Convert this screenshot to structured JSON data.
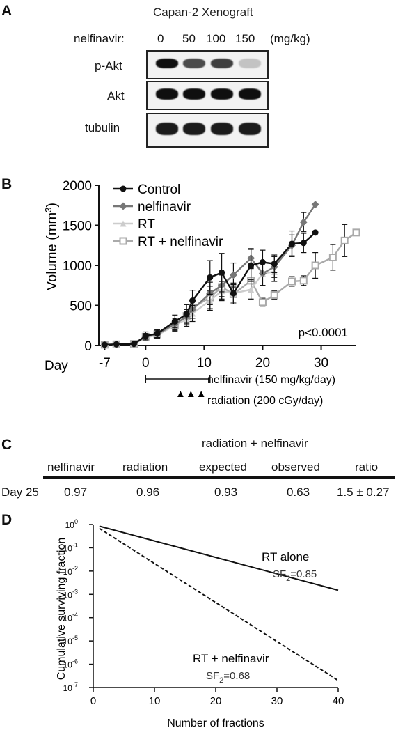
{
  "panel_a": {
    "letter": "A",
    "title": "Capan-2 Xenograft",
    "dose_label": "nelfinavir:",
    "doses": [
      "0",
      "50",
      "100",
      "150"
    ],
    "dose_unit": "(mg/kg)",
    "rows": [
      {
        "label": "p-Akt",
        "intensity": [
          1.0,
          0.75,
          0.8,
          0.25
        ]
      },
      {
        "label": "Akt",
        "intensity": [
          1.0,
          1.0,
          1.0,
          1.0
        ]
      },
      {
        "label": "tubulin",
        "intensity": [
          0.95,
          0.95,
          0.95,
          0.95
        ]
      }
    ]
  },
  "panel_b": {
    "letter": "B",
    "day_label": "Day",
    "pvalue": "p<0.0001",
    "nelfinavir_bar_label": "nelfinavir (150 mg/kg/day)",
    "radiation_label": "radiation (200 cGy/day)",
    "radiation_marker": "▲▲▲"
  },
  "panel_c": {
    "letter": "C",
    "group_header": "radiation + nelfinavir",
    "headers": [
      "nelfinavir",
      "radiation",
      "expected",
      "observed",
      "ratio"
    ],
    "row_label": "Day 25",
    "values": [
      "0.97",
      "0.96",
      "0.93",
      "0.63",
      "1.5 ± 0.27"
    ]
  },
  "panel_d": {
    "letter": "D"
  },
  "chart_data": [
    {
      "type": "line",
      "ylabel": "Volume (mm",
      "ylabel_sup": "3",
      "ylabel_close": ")",
      "xlim": [
        -8,
        36
      ],
      "ylim": [
        0,
        2000
      ],
      "x_ticks": [
        -7,
        0,
        10,
        20,
        30
      ],
      "y_ticks": [
        0,
        500,
        1000,
        1500,
        2000
      ],
      "x_tick_labels": [
        "-7",
        "0",
        "10",
        "20",
        "30"
      ],
      "y_tick_labels": [
        "0",
        "500",
        "1000",
        "1500",
        "2000"
      ],
      "legend_position": "top-left",
      "series": [
        {
          "name": "Control",
          "color": "#111111",
          "marker": "circle",
          "x": [
            -7,
            -5,
            -2,
            0,
            2,
            5,
            7,
            8,
            11,
            13,
            15,
            18,
            20,
            22,
            25,
            27,
            29
          ],
          "y": [
            10,
            15,
            20,
            120,
            150,
            300,
            390,
            560,
            850,
            910,
            650,
            1000,
            1040,
            1020,
            1270,
            1280,
            1410
          ],
          "err": [
            0,
            0,
            10,
            50,
            50,
            80,
            120,
            130,
            210,
            240,
            130,
            200,
            150,
            110,
            160,
            120,
            0
          ]
        },
        {
          "name": "nelfinavir",
          "color": "#777777",
          "marker": "diamond",
          "x": [
            -7,
            -5,
            -2,
            0,
            2,
            5,
            7,
            8,
            11,
            13,
            15,
            18,
            20,
            22,
            25,
            27,
            29
          ],
          "y": [
            10,
            15,
            20,
            110,
            140,
            270,
            360,
            450,
            650,
            750,
            880,
            1090,
            900,
            980,
            1250,
            1540,
            1760
          ],
          "err": [
            0,
            0,
            10,
            40,
            50,
            70,
            90,
            110,
            140,
            140,
            150,
            120,
            150,
            130,
            130,
            120,
            0
          ]
        },
        {
          "name": "RT",
          "color": "#cccccc",
          "marker": "triangle",
          "x": [
            -7,
            -5,
            -2,
            0,
            2,
            5,
            7,
            8,
            11,
            13,
            15,
            18,
            20,
            22
          ],
          "y": [
            10,
            15,
            20,
            100,
            130,
            250,
            330,
            400,
            560,
            680,
            650,
            700,
            900,
            920
          ],
          "err": [
            0,
            0,
            10,
            40,
            40,
            70,
            90,
            100,
            120,
            120,
            110,
            120,
            150,
            120
          ]
        },
        {
          "name": "RT + nelfinavir",
          "color": "#aaaaaa",
          "marker": "square",
          "x": [
            -7,
            -5,
            -2,
            0,
            2,
            5,
            7,
            8,
            11,
            13,
            15,
            18,
            20,
            22,
            25,
            27,
            29,
            32,
            34,
            36
          ],
          "y": [
            10,
            15,
            20,
            110,
            140,
            250,
            370,
            470,
            600,
            730,
            640,
            810,
            540,
            630,
            800,
            810,
            1000,
            1100,
            1310,
            1410
          ],
          "err": [
            0,
            0,
            10,
            40,
            40,
            60,
            80,
            100,
            140,
            150,
            120,
            150,
            50,
            50,
            60,
            60,
            160,
            160,
            200,
            0
          ]
        }
      ]
    },
    {
      "type": "line",
      "xlabel": "Number of fractions",
      "ylabel": "Cumulative surviving fraction",
      "xlim": [
        0,
        40
      ],
      "ylim": [
        1e-07,
        1
      ],
      "y_scale": "log",
      "x_ticks": [
        0,
        10,
        20,
        30,
        40
      ],
      "x_tick_labels": [
        "0",
        "10",
        "20",
        "30",
        "40"
      ],
      "y_ticks": [
        0,
        -1,
        -2,
        -3,
        -4,
        -5,
        -6,
        -7
      ],
      "y_tick_labels": [
        "10",
        "10",
        "10",
        "10",
        "10",
        "10",
        "10",
        "10"
      ],
      "y_tick_exponents": [
        "0",
        "-1",
        "-2",
        "-3",
        "-4",
        "-5",
        "-6",
        "-7"
      ],
      "series": [
        {
          "name": "RT alone",
          "note": "SF",
          "note_sub": "2",
          "note_val": "=0.85",
          "sf2": 0.85,
          "style": "solid",
          "x": [
            1,
            40
          ],
          "y": [
            0.85,
            0.0015
          ]
        },
        {
          "name": "RT + nelfinavir",
          "note": "SF",
          "note_sub": "2",
          "note_val": "=0.68",
          "sf2": 0.68,
          "style": "dashed",
          "x": [
            1,
            40
          ],
          "y": [
            0.68,
            2e-07
          ]
        }
      ]
    }
  ]
}
